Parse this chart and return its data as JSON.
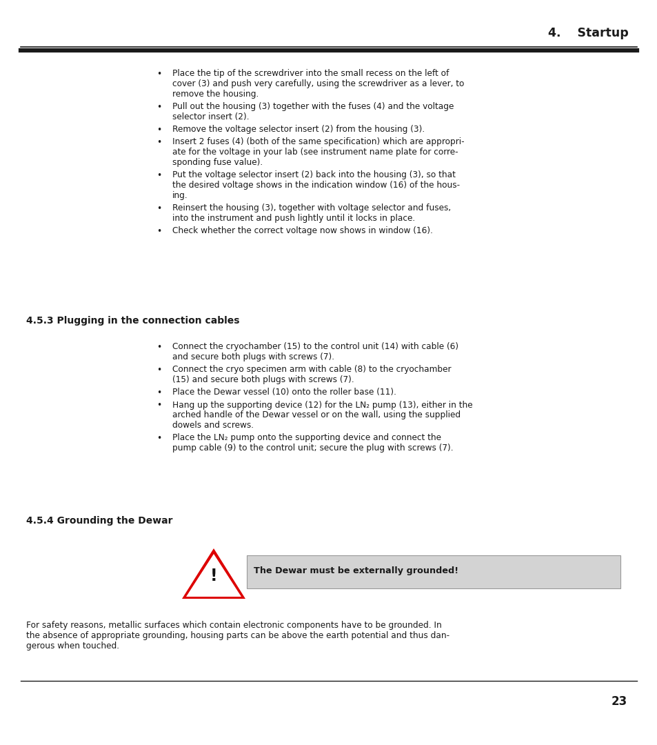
{
  "header_title": "4.    Startup",
  "page_number": "23",
  "section_453_title": "4.5.3 Plugging in the connection cables",
  "section_454_title": "4.5.4 Grounding the Dewar",
  "warning_text": "The Dewar must be externally grounded!",
  "bg_color": "#ffffff",
  "text_color": "#1a1a1a",
  "top_bullets": [
    [
      "Place the tip of the screwdriver into the small recess on the left of",
      "cover (3) and push very carefully, using the screwdriver as a lever, to",
      "remove the housing."
    ],
    [
      "Pull out the housing (3) together with the fuses (4) and the voltage",
      "selector insert (2)."
    ],
    [
      "Remove the voltage selector insert (2) from the housing (3)."
    ],
    [
      "Insert 2 fuses (4) (both of the same specification) which are appropri-",
      "ate for the voltage in your lab (see instrument name plate for corre-",
      "sponding fuse value)."
    ],
    [
      "Put the voltage selector insert (2) back into the housing (3), so that",
      "the desired voltage shows in the indication window (16) of the hous-",
      "ing."
    ],
    [
      "Reinsert the housing (3), together with voltage selector and fuses,",
      "into the instrument and push lightly until it locks in place."
    ],
    [
      "Check whether the correct voltage now shows in window (16)."
    ]
  ],
  "sec453_bullets": [
    [
      "Connect the cryochamber (15) to the control unit (14) with cable (6)",
      "and secure both plugs with screws (7)."
    ],
    [
      "Connect the cryo specimen arm with cable (8) to the cryochamber",
      "(15) and secure both plugs with screws (7)."
    ],
    [
      "Place the Dewar vessel (10) onto the roller base (11)."
    ],
    [
      "Hang up the supporting device (12) for the LN₂ pump (13), either in the",
      "arched handle of the Dewar vessel or on the wall, using the supplied",
      "dowels and screws."
    ],
    [
      "Place the LN₂ pump onto the supporting device and connect the",
      "pump cable (9) to the control unit; secure the plug with screws (7)."
    ]
  ],
  "footer_lines": [
    "For safety reasons, metallic surfaces which contain electronic components have to be grounded. In",
    "the absence of appropriate grounding, housing parts can be above the earth potential and thus dan-",
    "gerous when touched."
  ]
}
